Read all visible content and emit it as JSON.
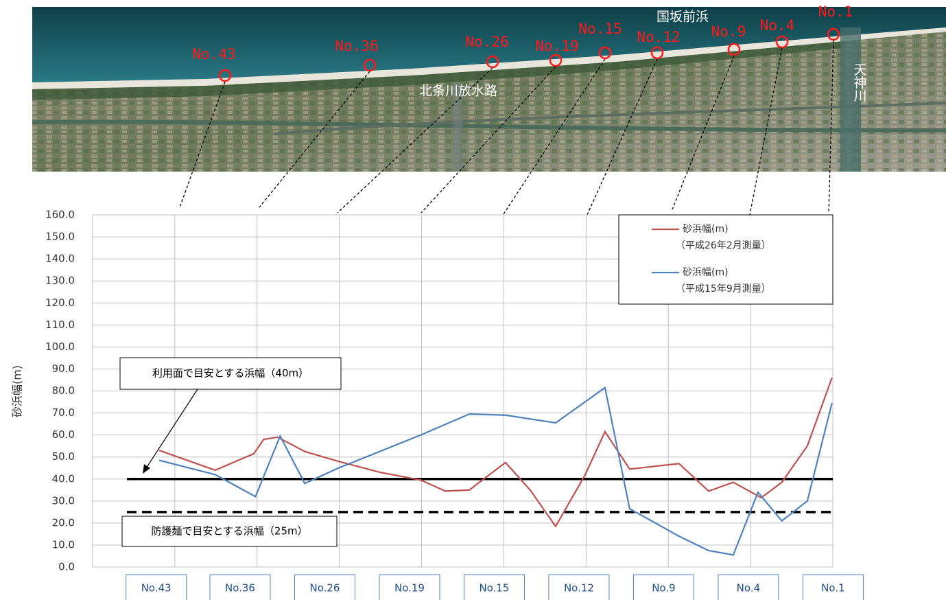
{
  "photo": {
    "points": [
      "No.43",
      "No.36",
      "No.26",
      "No.19",
      "No.15",
      "No.12",
      "No.9",
      "No.4",
      "No.1"
    ],
    "places": [
      "国坂前浜",
      "北条川放水路",
      "天神川"
    ]
  },
  "chart_data": {
    "type": "line",
    "ylabel": "砂浜幅(m)",
    "xlim": [
      0,
      9
    ],
    "xgrid": [
      0,
      1,
      2,
      3,
      4,
      5,
      6,
      7,
      8,
      9
    ],
    "xticks": [
      {
        "value": 0.79,
        "label": "No.43"
      },
      {
        "value": 1.81,
        "label": "No.36"
      },
      {
        "value": 2.84,
        "label": "No.26"
      },
      {
        "value": 3.87,
        "label": "No.19"
      },
      {
        "value": 4.9,
        "label": "No.15"
      },
      {
        "value": 5.93,
        "label": "No.12"
      },
      {
        "value": 6.96,
        "label": "No.9"
      },
      {
        "value": 7.99,
        "label": "No.4"
      },
      {
        "value": 9.02,
        "label": "No.1"
      }
    ],
    "ylim": [
      0,
      160
    ],
    "yticks": [
      {
        "value": 0,
        "label": "0.0"
      },
      {
        "value": 10,
        "label": "10.0"
      },
      {
        "value": 20,
        "label": "20.0"
      },
      {
        "value": 30,
        "label": "30.0"
      },
      {
        "value": 40,
        "label": "40.0"
      },
      {
        "value": 50,
        "label": "50.0"
      },
      {
        "value": 60,
        "label": "60.0"
      },
      {
        "value": 70,
        "label": "70.0"
      },
      {
        "value": 80,
        "label": "80.0"
      },
      {
        "value": 90,
        "label": "90.0"
      },
      {
        "value": 100,
        "label": "100.0"
      },
      {
        "value": 110,
        "label": "110.0"
      },
      {
        "value": 120,
        "label": "120.0"
      },
      {
        "value": 130,
        "label": "130.0"
      },
      {
        "value": 140,
        "label": "140.0"
      },
      {
        "value": 150,
        "label": "150.0"
      },
      {
        "value": 160,
        "label": "160.0"
      }
    ],
    "grid": true,
    "legend": "upper right",
    "series": [
      {
        "name": "砂浜幅(m)",
        "period": "（平成26年2月測量）",
        "color": "#c0504d",
        "x": [
          0.81,
          1.49,
          1.96,
          2.08,
          2.25,
          2.58,
          2.99,
          3.5,
          3.99,
          4.29,
          4.58,
          5.02,
          5.32,
          5.63,
          5.99,
          6.23,
          6.53,
          7.13,
          7.49,
          7.79,
          8.13,
          8.38,
          8.69,
          8.99
        ],
        "values": [
          53,
          44,
          51.5,
          58,
          59,
          52.5,
          48,
          43,
          39.5,
          34.5,
          35,
          47.5,
          35,
          18.5,
          42,
          61.5,
          44.5,
          47,
          34.5,
          38.5,
          31.5,
          38.5,
          55,
          86
        ]
      },
      {
        "name": "砂浜幅(m)",
        "period": "（平成15年9月測量）",
        "color": "#4f81bd",
        "x": [
          0.81,
          1.49,
          1.98,
          2.28,
          2.58,
          2.99,
          3.99,
          4.58,
          5.02,
          5.63,
          6.23,
          6.53,
          7.13,
          7.49,
          7.79,
          8.09,
          8.38,
          8.69,
          8.99
        ],
        "values": [
          48.5,
          42,
          32,
          59.5,
          38,
          45,
          60,
          69.5,
          69,
          65.5,
          81.5,
          26.5,
          14,
          7.5,
          5.5,
          34,
          21,
          30,
          74.5
        ]
      }
    ],
    "reference_lines": [
      {
        "value": 40,
        "label": "利用面で目安とする浜幅（40m）",
        "style": "solid"
      },
      {
        "value": 25,
        "label": "防護麺で目安とする浜幅（25m）",
        "style": "dashed"
      }
    ]
  }
}
